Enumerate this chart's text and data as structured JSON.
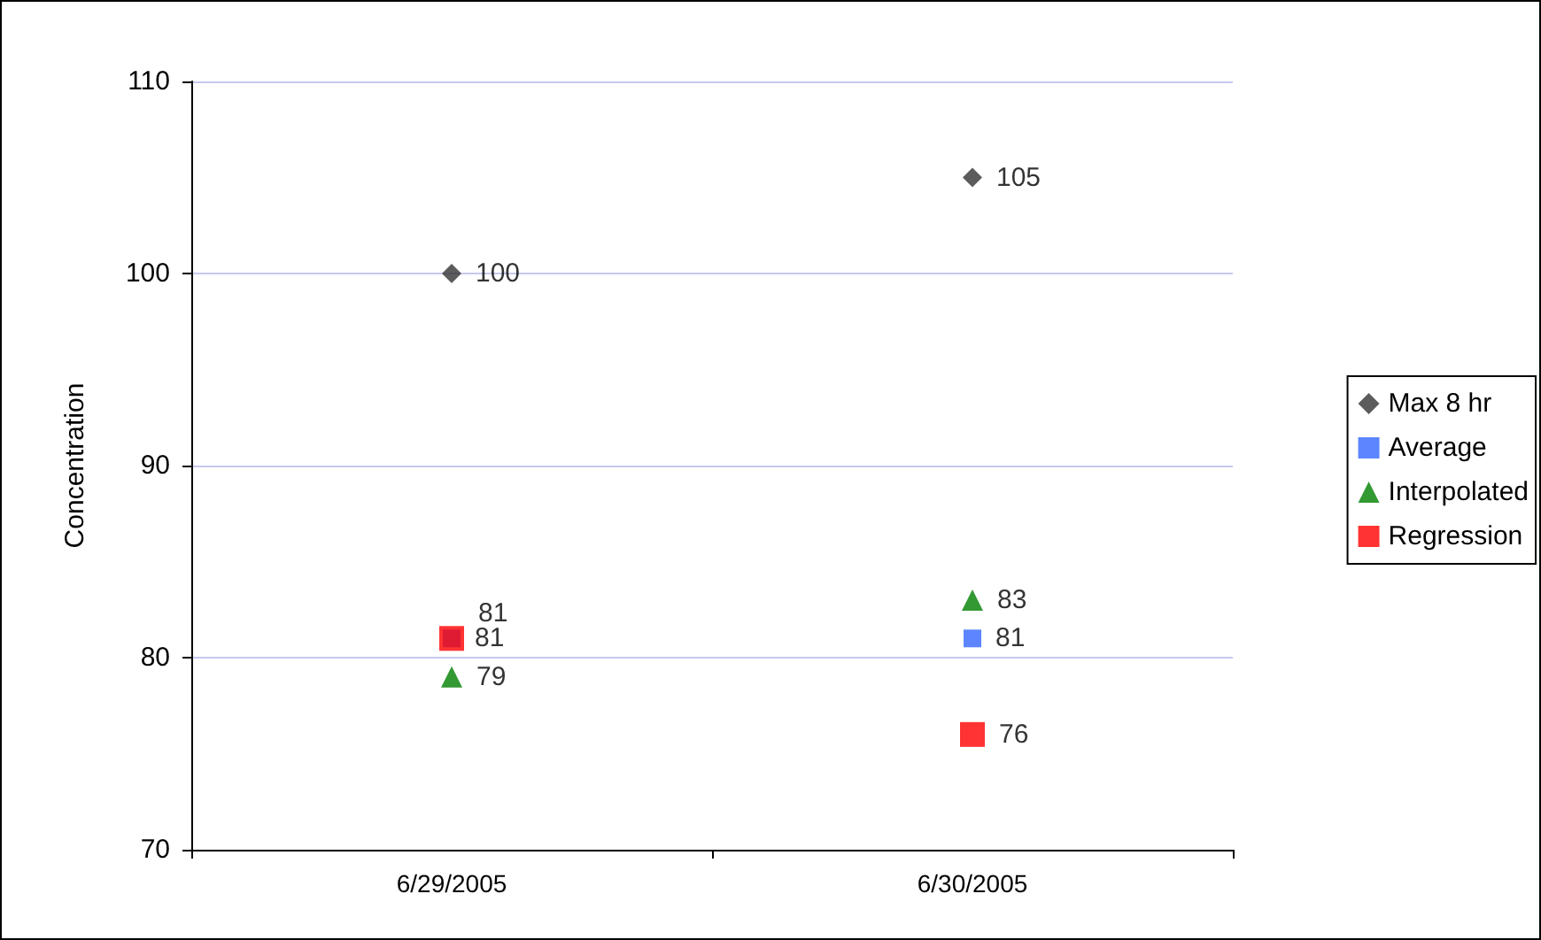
{
  "chart_data": {
    "type": "scatter",
    "ylabel": "Concentration",
    "categories": [
      "6/29/2005",
      "6/30/2005"
    ],
    "series": [
      {
        "name": "Max 8 hr",
        "color": "#333333",
        "marker": "diamond",
        "values": [
          100,
          105
        ]
      },
      {
        "name": "Average",
        "color": "#3366ff",
        "marker": "square",
        "values": [
          81,
          81
        ]
      },
      {
        "name": "Interpolated",
        "color": "#008000",
        "marker": "triangle",
        "values": [
          79,
          83
        ]
      },
      {
        "name": "Regression",
        "color": "#ff0000",
        "marker": "square",
        "values": [
          81,
          76
        ]
      }
    ],
    "ylim": [
      70,
      110
    ],
    "yticks": [
      70,
      80,
      90,
      100,
      110
    ],
    "grid": "y",
    "legend": "right",
    "data_labels": true
  }
}
